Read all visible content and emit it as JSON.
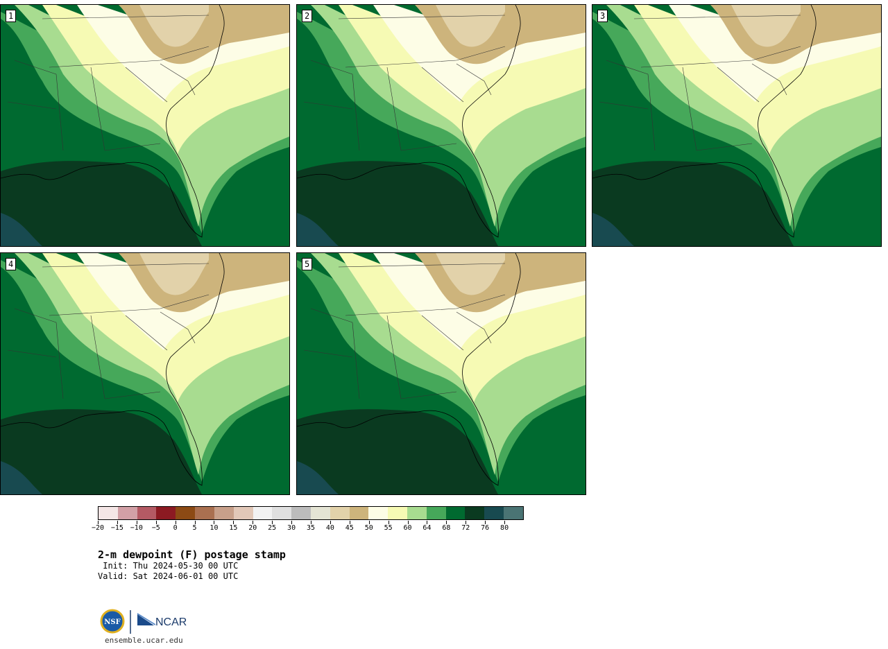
{
  "title": "2-m dewpoint (F) postage stamp",
  "init_text": " Init: Thu 2024-05-30 00 UTC",
  "valid_text": "Valid: Sat 2024-06-01 00 UTC",
  "website": "ensemble.ucar.edu",
  "logo_text": "NCAR",
  "logo_nsf": "NSF",
  "members": [
    {
      "label": "1"
    },
    {
      "label": "2"
    },
    {
      "label": "3"
    },
    {
      "label": "4"
    },
    {
      "label": "5"
    }
  ],
  "colorbar": {
    "colors": [
      "#f4e6e6",
      "#d2a0a6",
      "#b45a64",
      "#8c1a22",
      "#8c4a14",
      "#aa7050",
      "#c8a08a",
      "#e2c8b8",
      "#f2f2f2",
      "#e0e0e0",
      "#bcbcbc",
      "#e4e4d4",
      "#e2d2aa",
      "#cdb47c",
      "#fdfde6",
      "#f6fab4",
      "#a8dc90",
      "#46a85a",
      "#006a30",
      "#0a3a20",
      "#184a50",
      "#4a7474"
    ],
    "tick_labels": [
      "−20",
      "−15",
      "−10",
      "−5",
      "0",
      "5",
      "10",
      "15",
      "20",
      "25",
      "30",
      "35",
      "40",
      "45",
      "50",
      "55",
      "60",
      "64",
      "68",
      "72",
      "76",
      "80"
    ]
  },
  "map_colors": {
    "dry": "#cdb47c",
    "dry_light": "#e2d2aa",
    "d50": "#fdfde6",
    "d55": "#f6fab4",
    "d60": "#a8dc90",
    "d64": "#46a85a",
    "d68": "#006a30",
    "d72": "#0a3a20",
    "d76": "#184a50"
  }
}
